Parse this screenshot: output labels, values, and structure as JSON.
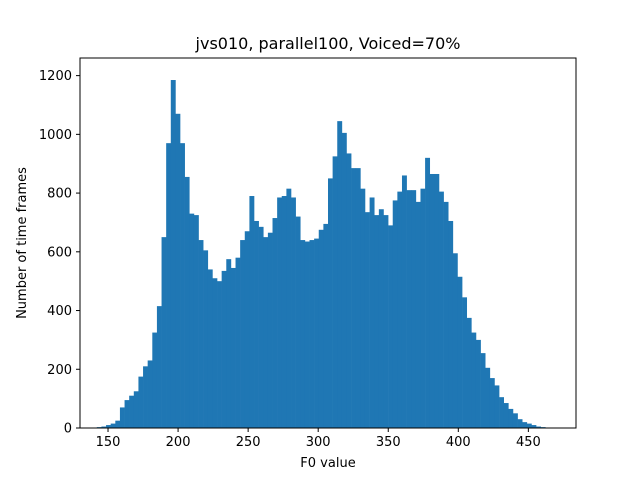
{
  "chart_data": {
    "type": "bar",
    "title": "jvs010, parallel100, Voiced=70%",
    "xlabel": "F0 value",
    "ylabel": "Number of time frames",
    "xlim": [
      130,
      484
    ],
    "ylim": [
      0,
      1260
    ],
    "xticks": [
      150,
      200,
      250,
      300,
      350,
      400,
      450
    ],
    "yticks": [
      0,
      200,
      400,
      600,
      800,
      1000,
      1200
    ],
    "bar_color": "#1f77b4",
    "grid": false,
    "bin_start": 142,
    "bin_width": 3.3,
    "values": [
      3,
      5,
      10,
      15,
      25,
      70,
      95,
      110,
      125,
      175,
      210,
      230,
      325,
      415,
      650,
      970,
      1185,
      1070,
      970,
      855,
      730,
      725,
      640,
      605,
      540,
      510,
      500,
      535,
      575,
      545,
      580,
      640,
      670,
      790,
      705,
      685,
      650,
      665,
      715,
      785,
      790,
      815,
      785,
      720,
      640,
      635,
      640,
      645,
      675,
      695,
      850,
      925,
      1045,
      1005,
      935,
      885,
      885,
      815,
      735,
      785,
      725,
      745,
      725,
      690,
      775,
      805,
      860,
      810,
      810,
      770,
      815,
      920,
      865,
      865,
      805,
      770,
      705,
      595,
      515,
      445,
      375,
      325,
      300,
      255,
      205,
      170,
      145,
      105,
      85,
      65,
      50,
      30,
      20,
      15,
      10,
      5,
      3
    ]
  }
}
